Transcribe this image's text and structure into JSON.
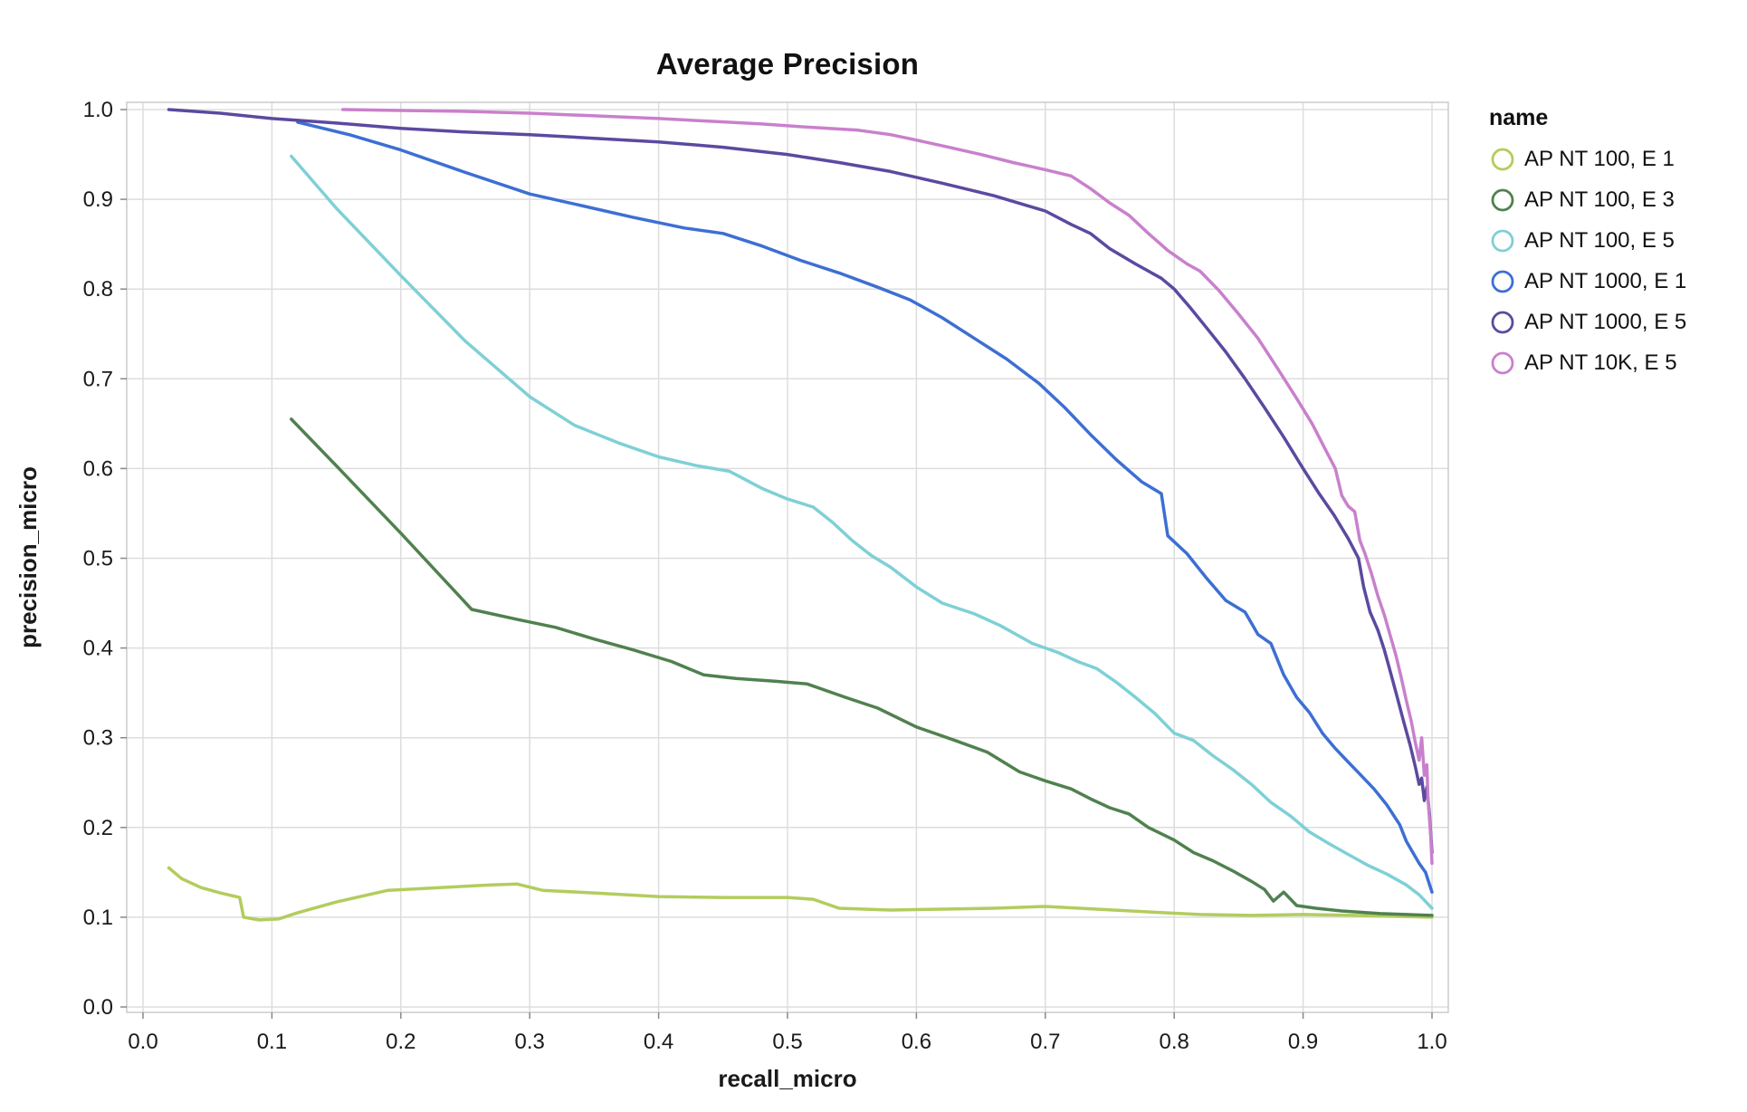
{
  "chart_data": {
    "type": "line",
    "title": "Average Precision",
    "xlabel": "recall_micro",
    "ylabel": "precision_micro",
    "legend_title": "name",
    "legend_position": "right",
    "grid": true,
    "xlim": [
      0.0,
      1.0
    ],
    "ylim": [
      0.0,
      1.0
    ],
    "xticks": [
      0.0,
      0.1,
      0.2,
      0.3,
      0.4,
      0.5,
      0.6,
      0.7,
      0.8,
      0.9,
      1.0
    ],
    "yticks": [
      0.0,
      0.1,
      0.2,
      0.3,
      0.4,
      0.5,
      0.6,
      0.7,
      0.8,
      0.9,
      1.0
    ],
    "colors": {
      "grid": "#dddddd",
      "border": "#cccccc",
      "tick": "#888888",
      "text": "#1a1a1a"
    },
    "series": [
      {
        "name": "AP NT 100, E 1",
        "color": "#b3cc5d",
        "points": [
          [
            0.02,
            0.155
          ],
          [
            0.03,
            0.143
          ],
          [
            0.045,
            0.133
          ],
          [
            0.06,
            0.127
          ],
          [
            0.075,
            0.122
          ],
          [
            0.078,
            0.1
          ],
          [
            0.09,
            0.097
          ],
          [
            0.105,
            0.098
          ],
          [
            0.12,
            0.105
          ],
          [
            0.15,
            0.117
          ],
          [
            0.19,
            0.13
          ],
          [
            0.23,
            0.133
          ],
          [
            0.27,
            0.136
          ],
          [
            0.29,
            0.137
          ],
          [
            0.31,
            0.13
          ],
          [
            0.35,
            0.127
          ],
          [
            0.4,
            0.123
          ],
          [
            0.45,
            0.122
          ],
          [
            0.5,
            0.122
          ],
          [
            0.52,
            0.12
          ],
          [
            0.54,
            0.11
          ],
          [
            0.58,
            0.108
          ],
          [
            0.62,
            0.109
          ],
          [
            0.66,
            0.11
          ],
          [
            0.7,
            0.112
          ],
          [
            0.74,
            0.109
          ],
          [
            0.78,
            0.106
          ],
          [
            0.82,
            0.103
          ],
          [
            0.86,
            0.102
          ],
          [
            0.9,
            0.103
          ],
          [
            0.94,
            0.102
          ],
          [
            0.97,
            0.101
          ],
          [
            1.0,
            0.1
          ]
        ]
      },
      {
        "name": "AP NT 100, E 3",
        "color": "#50814f",
        "points": [
          [
            0.115,
            0.655
          ],
          [
            0.15,
            0.603
          ],
          [
            0.2,
            0.528
          ],
          [
            0.255,
            0.443
          ],
          [
            0.29,
            0.432
          ],
          [
            0.32,
            0.423
          ],
          [
            0.35,
            0.41
          ],
          [
            0.38,
            0.398
          ],
          [
            0.41,
            0.385
          ],
          [
            0.435,
            0.37
          ],
          [
            0.46,
            0.366
          ],
          [
            0.49,
            0.363
          ],
          [
            0.515,
            0.36
          ],
          [
            0.545,
            0.345
          ],
          [
            0.57,
            0.333
          ],
          [
            0.6,
            0.312
          ],
          [
            0.63,
            0.297
          ],
          [
            0.655,
            0.284
          ],
          [
            0.68,
            0.262
          ],
          [
            0.7,
            0.252
          ],
          [
            0.72,
            0.243
          ],
          [
            0.735,
            0.232
          ],
          [
            0.75,
            0.222
          ],
          [
            0.765,
            0.215
          ],
          [
            0.78,
            0.2
          ],
          [
            0.8,
            0.186
          ],
          [
            0.815,
            0.172
          ],
          [
            0.83,
            0.163
          ],
          [
            0.845,
            0.152
          ],
          [
            0.86,
            0.14
          ],
          [
            0.87,
            0.131
          ],
          [
            0.877,
            0.118
          ],
          [
            0.885,
            0.128
          ],
          [
            0.895,
            0.113
          ],
          [
            0.91,
            0.11
          ],
          [
            0.93,
            0.107
          ],
          [
            0.96,
            0.104
          ],
          [
            1.0,
            0.102
          ]
        ]
      },
      {
        "name": "AP NT 100, E 5",
        "color": "#7ed0d6",
        "points": [
          [
            0.115,
            0.948
          ],
          [
            0.15,
            0.89
          ],
          [
            0.2,
            0.815
          ],
          [
            0.25,
            0.742
          ],
          [
            0.3,
            0.68
          ],
          [
            0.335,
            0.648
          ],
          [
            0.37,
            0.628
          ],
          [
            0.4,
            0.613
          ],
          [
            0.43,
            0.603
          ],
          [
            0.455,
            0.597
          ],
          [
            0.48,
            0.578
          ],
          [
            0.5,
            0.566
          ],
          [
            0.52,
            0.557
          ],
          [
            0.535,
            0.54
          ],
          [
            0.55,
            0.52
          ],
          [
            0.565,
            0.503
          ],
          [
            0.58,
            0.49
          ],
          [
            0.6,
            0.468
          ],
          [
            0.62,
            0.45
          ],
          [
            0.645,
            0.438
          ],
          [
            0.665,
            0.425
          ],
          [
            0.69,
            0.405
          ],
          [
            0.71,
            0.395
          ],
          [
            0.725,
            0.385
          ],
          [
            0.74,
            0.377
          ],
          [
            0.755,
            0.362
          ],
          [
            0.77,
            0.345
          ],
          [
            0.785,
            0.327
          ],
          [
            0.8,
            0.305
          ],
          [
            0.815,
            0.297
          ],
          [
            0.83,
            0.28
          ],
          [
            0.845,
            0.265
          ],
          [
            0.86,
            0.248
          ],
          [
            0.875,
            0.228
          ],
          [
            0.89,
            0.213
          ],
          [
            0.905,
            0.195
          ],
          [
            0.92,
            0.182
          ],
          [
            0.935,
            0.17
          ],
          [
            0.95,
            0.158
          ],
          [
            0.965,
            0.148
          ],
          [
            0.98,
            0.136
          ],
          [
            0.99,
            0.125
          ],
          [
            1.0,
            0.11
          ]
        ]
      },
      {
        "name": "AP NT 1000, E 1",
        "color": "#3d6fd3",
        "points": [
          [
            0.12,
            0.986
          ],
          [
            0.16,
            0.972
          ],
          [
            0.2,
            0.955
          ],
          [
            0.25,
            0.93
          ],
          [
            0.3,
            0.906
          ],
          [
            0.34,
            0.893
          ],
          [
            0.38,
            0.88
          ],
          [
            0.42,
            0.868
          ],
          [
            0.45,
            0.862
          ],
          [
            0.48,
            0.848
          ],
          [
            0.51,
            0.832
          ],
          [
            0.54,
            0.818
          ],
          [
            0.57,
            0.802
          ],
          [
            0.595,
            0.788
          ],
          [
            0.62,
            0.768
          ],
          [
            0.645,
            0.745
          ],
          [
            0.67,
            0.722
          ],
          [
            0.695,
            0.695
          ],
          [
            0.715,
            0.668
          ],
          [
            0.735,
            0.638
          ],
          [
            0.755,
            0.61
          ],
          [
            0.775,
            0.585
          ],
          [
            0.79,
            0.572
          ],
          [
            0.795,
            0.525
          ],
          [
            0.81,
            0.505
          ],
          [
            0.825,
            0.478
          ],
          [
            0.84,
            0.453
          ],
          [
            0.855,
            0.44
          ],
          [
            0.865,
            0.415
          ],
          [
            0.875,
            0.405
          ],
          [
            0.885,
            0.37
          ],
          [
            0.895,
            0.345
          ],
          [
            0.905,
            0.328
          ],
          [
            0.915,
            0.305
          ],
          [
            0.925,
            0.288
          ],
          [
            0.935,
            0.273
          ],
          [
            0.945,
            0.258
          ],
          [
            0.955,
            0.243
          ],
          [
            0.965,
            0.225
          ],
          [
            0.975,
            0.203
          ],
          [
            0.98,
            0.185
          ],
          [
            0.99,
            0.16
          ],
          [
            0.995,
            0.15
          ],
          [
            1.0,
            0.128
          ]
        ]
      },
      {
        "name": "AP NT 1000, E 5",
        "color": "#5c49a0",
        "points": [
          [
            0.02,
            1.0
          ],
          [
            0.06,
            0.996
          ],
          [
            0.1,
            0.99
          ],
          [
            0.15,
            0.985
          ],
          [
            0.2,
            0.979
          ],
          [
            0.25,
            0.975
          ],
          [
            0.3,
            0.972
          ],
          [
            0.35,
            0.968
          ],
          [
            0.4,
            0.964
          ],
          [
            0.45,
            0.958
          ],
          [
            0.5,
            0.95
          ],
          [
            0.54,
            0.941
          ],
          [
            0.58,
            0.931
          ],
          [
            0.62,
            0.918
          ],
          [
            0.66,
            0.904
          ],
          [
            0.7,
            0.887
          ],
          [
            0.72,
            0.872
          ],
          [
            0.735,
            0.862
          ],
          [
            0.75,
            0.845
          ],
          [
            0.77,
            0.828
          ],
          [
            0.79,
            0.812
          ],
          [
            0.8,
            0.8
          ],
          [
            0.812,
            0.78
          ],
          [
            0.825,
            0.757
          ],
          [
            0.84,
            0.73
          ],
          [
            0.855,
            0.7
          ],
          [
            0.87,
            0.668
          ],
          [
            0.885,
            0.635
          ],
          [
            0.9,
            0.6
          ],
          [
            0.912,
            0.573
          ],
          [
            0.924,
            0.548
          ],
          [
            0.935,
            0.522
          ],
          [
            0.943,
            0.5
          ],
          [
            0.947,
            0.468
          ],
          [
            0.952,
            0.44
          ],
          [
            0.958,
            0.42
          ],
          [
            0.963,
            0.398
          ],
          [
            0.968,
            0.372
          ],
          [
            0.973,
            0.345
          ],
          [
            0.978,
            0.318
          ],
          [
            0.983,
            0.292
          ],
          [
            0.987,
            0.268
          ],
          [
            0.99,
            0.248
          ],
          [
            0.992,
            0.255
          ],
          [
            0.994,
            0.23
          ],
          [
            0.996,
            0.245
          ],
          [
            0.998,
            0.215
          ],
          [
            1.0,
            0.172
          ]
        ]
      },
      {
        "name": "AP NT 10K, E 5",
        "color": "#c980cc",
        "points": [
          [
            0.155,
            1.0
          ],
          [
            0.2,
            0.999
          ],
          [
            0.25,
            0.998
          ],
          [
            0.3,
            0.996
          ],
          [
            0.35,
            0.993
          ],
          [
            0.4,
            0.99
          ],
          [
            0.44,
            0.987
          ],
          [
            0.48,
            0.984
          ],
          [
            0.52,
            0.98
          ],
          [
            0.555,
            0.977
          ],
          [
            0.58,
            0.972
          ],
          [
            0.6,
            0.966
          ],
          [
            0.625,
            0.958
          ],
          [
            0.65,
            0.95
          ],
          [
            0.675,
            0.941
          ],
          [
            0.7,
            0.933
          ],
          [
            0.72,
            0.926
          ],
          [
            0.735,
            0.912
          ],
          [
            0.75,
            0.896
          ],
          [
            0.765,
            0.882
          ],
          [
            0.78,
            0.862
          ],
          [
            0.795,
            0.843
          ],
          [
            0.81,
            0.828
          ],
          [
            0.82,
            0.82
          ],
          [
            0.835,
            0.798
          ],
          [
            0.85,
            0.772
          ],
          [
            0.865,
            0.745
          ],
          [
            0.88,
            0.712
          ],
          [
            0.895,
            0.678
          ],
          [
            0.907,
            0.65
          ],
          [
            0.917,
            0.622
          ],
          [
            0.925,
            0.6
          ],
          [
            0.93,
            0.57
          ],
          [
            0.935,
            0.558
          ],
          [
            0.94,
            0.552
          ],
          [
            0.944,
            0.52
          ],
          [
            0.948,
            0.505
          ],
          [
            0.953,
            0.483
          ],
          [
            0.958,
            0.458
          ],
          [
            0.963,
            0.437
          ],
          [
            0.968,
            0.412
          ],
          [
            0.972,
            0.392
          ],
          [
            0.976,
            0.368
          ],
          [
            0.98,
            0.342
          ],
          [
            0.984,
            0.318
          ],
          [
            0.987,
            0.295
          ],
          [
            0.99,
            0.275
          ],
          [
            0.992,
            0.3
          ],
          [
            0.994,
            0.258
          ],
          [
            0.996,
            0.27
          ],
          [
            0.997,
            0.23
          ],
          [
            0.998,
            0.21
          ],
          [
            0.999,
            0.19
          ],
          [
            1.0,
            0.16
          ]
        ]
      }
    ]
  }
}
